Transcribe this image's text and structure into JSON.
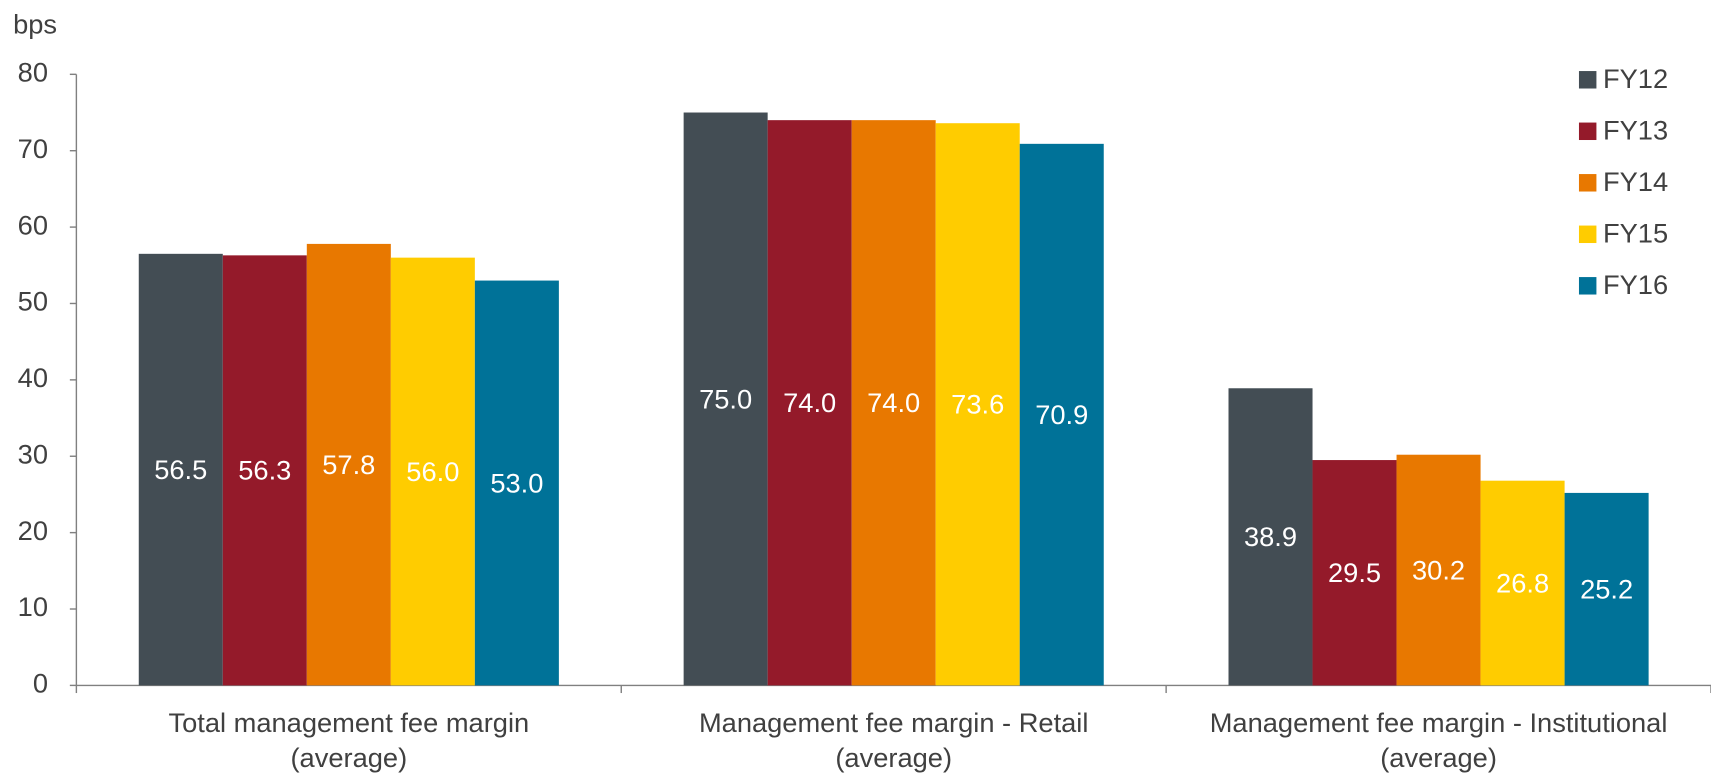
{
  "chart_data": {
    "type": "bar",
    "ylabel": "bps",
    "categories": [
      [
        "Total management fee margin",
        "(average)"
      ],
      [
        "Management fee margin - Retail",
        "(average)"
      ],
      [
        "Management fee margin - Institutional",
        "(average)"
      ]
    ],
    "series": [
      {
        "name": "FY12",
        "color": "#434d54",
        "values": [
          56.5,
          75.0,
          38.9
        ],
        "value_labels": [
          "56.5",
          "75.0",
          "38.9"
        ]
      },
      {
        "name": "FY13",
        "color": "#941a2a",
        "values": [
          56.3,
          74.0,
          29.5
        ],
        "value_labels": [
          "56.3",
          "74.0",
          "29.5"
        ]
      },
      {
        "name": "FY14",
        "color": "#e87800",
        "values": [
          57.8,
          74.0,
          30.2
        ],
        "value_labels": [
          "57.8",
          "74.0",
          "30.2"
        ]
      },
      {
        "name": "FY15",
        "color": "#ffcc00",
        "values": [
          56.0,
          73.6,
          26.8
        ],
        "value_labels": [
          "56.0",
          "73.6",
          "26.8"
        ]
      },
      {
        "name": "FY16",
        "color": "#007298",
        "values": [
          53.0,
          70.9,
          25.2
        ],
        "value_labels": [
          "53.0",
          "70.9",
          "25.2"
        ]
      }
    ],
    "ylim": [
      0,
      80
    ],
    "yticks": [
      0,
      10,
      20,
      30,
      40,
      50,
      60,
      70,
      80
    ],
    "legend": "top-right"
  }
}
